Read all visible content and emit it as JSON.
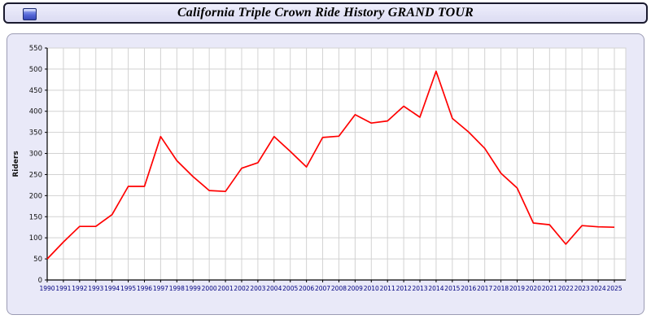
{
  "header": {
    "title": "California Triple Crown Ride History GRAND TOUR",
    "icon": "window-icon"
  },
  "colors": {
    "line": "#ff0000",
    "panel_background": "#e9e9f8",
    "plot_background": "#ffffff",
    "grid": "#d2d2d2",
    "axis": "#000000",
    "x_tick_label": "#000080",
    "y_tick_label": "#111111"
  },
  "chart_data": {
    "type": "line",
    "title": "California Triple Crown Ride History GRAND TOUR",
    "xlabel": "",
    "ylabel": "Riders",
    "ylim": [
      0,
      550
    ],
    "yticks": [
      0,
      50,
      100,
      150,
      200,
      250,
      300,
      350,
      400,
      450,
      500,
      550
    ],
    "grid": true,
    "legend": "none",
    "x": [
      1990,
      1991,
      1992,
      1993,
      1994,
      1995,
      1996,
      1997,
      1998,
      1999,
      2000,
      2001,
      2002,
      2003,
      2004,
      2005,
      2006,
      2007,
      2008,
      2009,
      2010,
      2011,
      2012,
      2013,
      2014,
      2015,
      2016,
      2017,
      2018,
      2019,
      2020,
      2021,
      2022,
      2023,
      2024,
      2025
    ],
    "series": [
      {
        "name": "Riders",
        "color": "#ff0000",
        "values": [
          50,
          90,
          127,
          127,
          155,
          222,
          222,
          340,
          283,
          245,
          212,
          210,
          265,
          278,
          340,
          305,
          268,
          338,
          341,
          392,
          372,
          377,
          412,
          386,
          495,
          383,
          351,
          312,
          253,
          218,
          135,
          131,
          85,
          129,
          126,
          125
        ]
      }
    ]
  }
}
